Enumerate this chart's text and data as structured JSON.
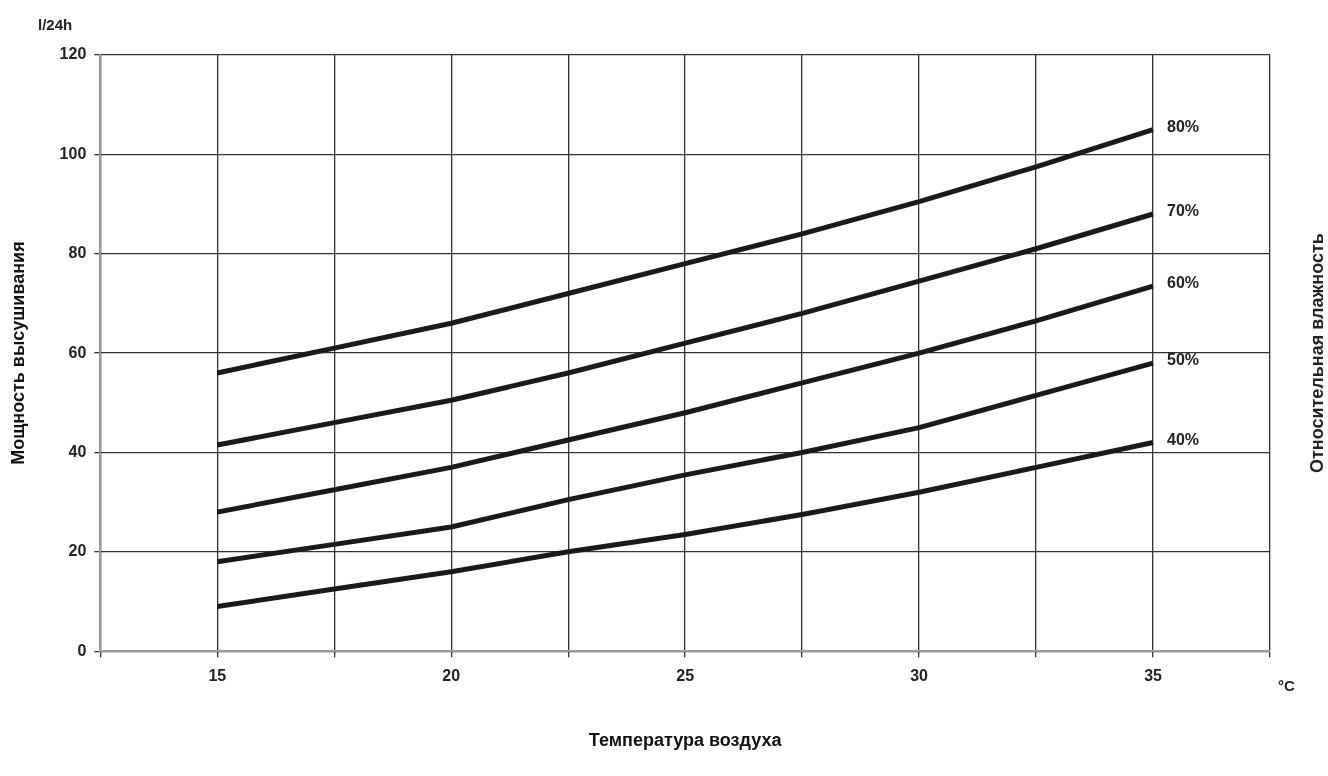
{
  "chart_data": {
    "type": "line",
    "xlabel": "Температура воздуха",
    "ylabel": "Мощность высушивания",
    "y2label": "Относительная влажность",
    "annotations": [
      "l/24h",
      "°C"
    ],
    "x": [
      15,
      17.5,
      20,
      22.5,
      25,
      27.5,
      30,
      32.5,
      35
    ],
    "series": [
      {
        "name": "80%",
        "color": "#1a1a1a",
        "values": [
          56,
          61,
          66,
          72,
          78,
          84,
          90.5,
          97.5,
          105
        ]
      },
      {
        "name": "70%",
        "color": "#1a1a1a",
        "values": [
          41.5,
          46,
          50.5,
          56,
          62,
          68,
          74.5,
          81,
          88
        ]
      },
      {
        "name": "60%",
        "color": "#1a1a1a",
        "values": [
          28,
          32.5,
          37,
          42.5,
          48,
          54,
          60,
          66.5,
          73.5
        ]
      },
      {
        "name": "50%",
        "color": "#1a1a1a",
        "values": [
          18,
          21.5,
          25,
          30.5,
          35.5,
          40,
          45,
          51.5,
          58
        ]
      },
      {
        "name": "40%",
        "color": "#1a1a1a",
        "values": [
          9,
          12.5,
          16,
          20,
          23.5,
          27.5,
          32,
          37,
          42
        ]
      }
    ],
    "xlim": [
      12.5,
      37.5
    ],
    "xticks": [
      {
        "value": 12.5,
        "label": null
      },
      15,
      {
        "value": 17.5,
        "label": null
      },
      20,
      {
        "value": 22.5,
        "label": null
      },
      25,
      {
        "value": 27.5,
        "label": null
      },
      30,
      {
        "value": 32.5,
        "label": null
      },
      35,
      {
        "value": 37.5,
        "label": null
      }
    ],
    "ylim": [
      0,
      120
    ],
    "yticks": [
      0,
      20,
      40,
      60,
      80,
      100,
      120
    ],
    "grid": true,
    "legend": false,
    "marker": "none",
    "line_style": "solid"
  }
}
